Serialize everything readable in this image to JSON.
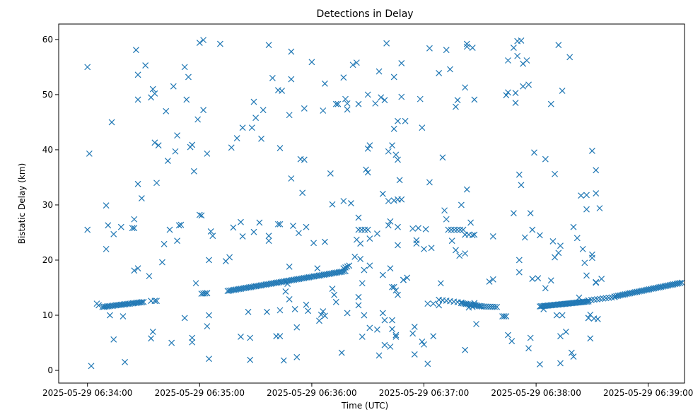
{
  "chart_data": {
    "type": "scatter",
    "title": "Detections in Delay",
    "xlabel": "Time (UTC)",
    "ylabel": "Bistatic Delay (km)",
    "marker": "x",
    "marker_color": "#1f77b4",
    "xlim_seconds": [
      -15.4,
      319.4
    ],
    "ylim": [
      -2.3,
      62.8
    ],
    "x_ticks": [
      {
        "t": 0,
        "label": "2025-05-29 06:34:00"
      },
      {
        "t": 60,
        "label": "2025-05-29 06:35:00"
      },
      {
        "t": 120,
        "label": "2025-05-29 06:36:00"
      },
      {
        "t": 180,
        "label": "2025-05-29 06:37:00"
      },
      {
        "t": 240,
        "label": "2025-05-29 06:38:00"
      },
      {
        "t": 300,
        "label": "2025-05-29 06:39:00"
      }
    ],
    "y_ticks": [
      {
        "v": 0,
        "label": "0"
      },
      {
        "v": 10,
        "label": "10"
      },
      {
        "v": 20,
        "label": "20"
      },
      {
        "v": 30,
        "label": "30"
      },
      {
        "v": 40,
        "label": "40"
      },
      {
        "v": 50,
        "label": "50"
      },
      {
        "v": 60,
        "label": "60"
      }
    ],
    "track_segments": [
      {
        "t0": 8,
        "t1": 30,
        "y0": 11.5,
        "y1": 12.4,
        "n": 28
      },
      {
        "t0": 36,
        "t1": 37,
        "y0": 12.6,
        "y1": 12.6,
        "n": 2
      },
      {
        "t0": 61,
        "t1": 64,
        "y0": 13.9,
        "y1": 14.0,
        "n": 4
      },
      {
        "t0": 75,
        "t1": 138,
        "y0": 14.4,
        "y1": 18.0,
        "n": 72
      },
      {
        "t0": 137,
        "t1": 140,
        "y0": 18.5,
        "y1": 19.0,
        "n": 4
      },
      {
        "t0": 145,
        "t1": 150,
        "y0": 25.5,
        "y1": 25.5,
        "n": 4
      },
      {
        "t0": 166,
        "t1": 168,
        "y0": 31.0,
        "y1": 31.0,
        "n": 2
      },
      {
        "t0": 188,
        "t1": 200,
        "y0": 12.8,
        "y1": 12.3,
        "n": 7
      },
      {
        "t0": 200,
        "t1": 211,
        "y0": 12.2,
        "y1": 11.6,
        "n": 14
      },
      {
        "t0": 211,
        "t1": 219,
        "y0": 11.6,
        "y1": 11.5,
        "n": 8
      },
      {
        "t0": 222,
        "t1": 224,
        "y0": 9.8,
        "y1": 9.8,
        "n": 3
      },
      {
        "t0": 193,
        "t1": 201,
        "y0": 25.5,
        "y1": 25.5,
        "n": 6
      },
      {
        "t0": 242,
        "t1": 268,
        "y0": 11.6,
        "y1": 12.5,
        "n": 36
      },
      {
        "t0": 268,
        "t1": 282,
        "y0": 12.7,
        "y1": 13.3,
        "n": 10
      },
      {
        "t0": 282,
        "t1": 318,
        "y0": 13.4,
        "y1": 15.9,
        "n": 40
      }
    ],
    "points": [
      [
        0,
        55
      ],
      [
        1,
        39.3
      ],
      [
        2,
        0.8
      ],
      [
        5,
        12.1
      ],
      [
        6,
        11.8
      ],
      [
        0,
        25.5
      ],
      [
        10,
        29.9
      ],
      [
        10,
        22
      ],
      [
        11,
        26.3
      ],
      [
        12,
        10
      ],
      [
        13,
        45
      ],
      [
        14,
        24.7
      ],
      [
        14,
        5.6
      ],
      [
        18,
        26
      ],
      [
        19,
        9.8
      ],
      [
        20,
        1.5
      ],
      [
        24,
        25.8
      ],
      [
        25,
        25.8
      ],
      [
        25,
        27.4
      ],
      [
        25,
        18.1
      ],
      [
        26,
        58.1
      ],
      [
        27,
        53.6
      ],
      [
        27,
        49.1
      ],
      [
        27,
        33.8
      ],
      [
        27,
        18.5
      ],
      [
        29,
        31.2
      ],
      [
        31,
        55.3
      ],
      [
        33,
        17.1
      ],
      [
        34,
        5.8
      ],
      [
        34,
        12.6
      ],
      [
        34,
        49.5
      ],
      [
        35,
        51
      ],
      [
        35,
        7
      ],
      [
        36,
        41.3
      ],
      [
        36,
        50.2
      ],
      [
        37,
        34
      ],
      [
        38,
        40.8
      ],
      [
        40,
        19.6
      ],
      [
        41,
        22.9
      ],
      [
        42,
        47
      ],
      [
        43,
        38
      ],
      [
        44,
        25.5
      ],
      [
        45,
        5
      ],
      [
        46,
        51.5
      ],
      [
        47,
        39.7
      ],
      [
        48,
        42.6
      ],
      [
        48,
        23.5
      ],
      [
        49,
        26.3
      ],
      [
        50,
        26.4
      ],
      [
        52,
        9.5
      ],
      [
        52,
        55
      ],
      [
        53,
        49.1
      ],
      [
        54,
        53.2
      ],
      [
        55,
        40.5
      ],
      [
        56,
        5.9
      ],
      [
        56,
        5.1
      ],
      [
        56,
        40.9
      ],
      [
        57,
        36.1
      ],
      [
        58,
        15.8
      ],
      [
        59,
        45.5
      ],
      [
        60,
        28.2
      ],
      [
        60,
        59.4
      ],
      [
        61,
        28.1
      ],
      [
        62,
        47.2
      ],
      [
        62,
        59.9
      ],
      [
        64,
        39.3
      ],
      [
        64,
        8
      ],
      [
        64,
        14
      ],
      [
        65,
        10
      ],
      [
        65,
        2.1
      ],
      [
        65,
        20
      ],
      [
        66,
        25.2
      ],
      [
        67,
        24.4
      ],
      [
        71,
        59.2
      ],
      [
        74,
        19.8
      ],
      [
        76,
        20.5
      ],
      [
        77,
        40.4
      ],
      [
        78,
        25.9
      ],
      [
        80,
        42.1
      ],
      [
        82,
        26.9
      ],
      [
        82,
        6.1
      ],
      [
        83,
        24.3
      ],
      [
        83,
        44
      ],
      [
        86,
        10.6
      ],
      [
        87,
        5.9
      ],
      [
        87,
        1.9
      ],
      [
        88,
        44
      ],
      [
        89,
        25.1
      ],
      [
        89,
        48.7
      ],
      [
        90,
        45.8
      ],
      [
        92,
        26.8
      ],
      [
        93,
        42
      ],
      [
        94,
        47.2
      ],
      [
        96,
        10.6
      ],
      [
        97,
        59
      ],
      [
        97,
        24.4
      ],
      [
        97,
        23.5
      ],
      [
        99,
        53
      ],
      [
        101,
        6.2
      ],
      [
        102,
        50.8
      ],
      [
        102,
        26.5
      ],
      [
        103,
        26.5
      ],
      [
        103,
        6.2
      ],
      [
        103,
        10.9
      ],
      [
        103,
        40.3
      ],
      [
        104,
        50.7
      ],
      [
        105,
        1.8
      ],
      [
        106,
        14.3
      ],
      [
        107,
        15.7
      ],
      [
        108,
        18.8
      ],
      [
        108,
        12.9
      ],
      [
        108,
        46.3
      ],
      [
        109,
        57.8
      ],
      [
        109,
        52.8
      ],
      [
        109,
        34.8
      ],
      [
        110,
        26.2
      ],
      [
        111,
        11.1
      ],
      [
        112,
        7.8
      ],
      [
        112,
        2.4
      ],
      [
        113,
        24.9
      ],
      [
        114,
        38.3
      ],
      [
        115,
        32.2
      ],
      [
        116,
        47.5
      ],
      [
        116,
        38.2
      ],
      [
        117,
        26
      ],
      [
        117,
        11.9
      ],
      [
        118,
        10.8
      ],
      [
        120,
        55.9
      ],
      [
        121,
        23.1
      ],
      [
        123,
        18.5
      ],
      [
        124,
        9
      ],
      [
        125,
        10.1
      ],
      [
        126,
        47.1
      ],
      [
        126,
        10.7
      ],
      [
        127,
        52
      ],
      [
        127,
        9.9
      ],
      [
        127,
        23.3
      ],
      [
        130,
        35.7
      ],
      [
        131,
        14.8
      ],
      [
        131,
        30.1
      ],
      [
        132,
        13.7
      ],
      [
        133,
        48.3
      ],
      [
        133,
        12.4
      ],
      [
        134,
        48.3
      ],
      [
        136,
        3.2
      ],
      [
        137,
        53.1
      ],
      [
        137,
        30.7
      ],
      [
        138,
        49.2
      ],
      [
        139,
        10.4
      ],
      [
        139,
        48.4
      ],
      [
        139,
        47.3
      ],
      [
        141,
        30.3
      ],
      [
        142,
        55.4
      ],
      [
        143,
        20.6
      ],
      [
        144,
        55.8
      ],
      [
        144,
        23.7
      ],
      [
        145,
        13.3
      ],
      [
        145,
        27.7
      ],
      [
        145,
        11.8
      ],
      [
        145,
        48.3
      ],
      [
        146,
        23
      ],
      [
        146,
        20.2
      ],
      [
        147,
        15.8
      ],
      [
        147,
        6.1
      ],
      [
        148,
        10
      ],
      [
        148,
        18.2
      ],
      [
        149,
        36.4
      ],
      [
        150,
        40.2
      ],
      [
        150,
        35.9
      ],
      [
        150,
        50
      ],
      [
        151,
        19
      ],
      [
        151,
        23.9
      ],
      [
        151,
        7.7
      ],
      [
        151,
        40.8
      ],
      [
        154,
        48.4
      ],
      [
        155,
        7.4
      ],
      [
        155,
        24.8
      ],
      [
        156,
        2.7
      ],
      [
        156,
        54.2
      ],
      [
        157,
        49.5
      ],
      [
        158,
        32
      ],
      [
        158,
        17.3
      ],
      [
        158,
        10.4
      ],
      [
        159,
        49
      ],
      [
        159,
        4.6
      ],
      [
        159,
        9.1
      ],
      [
        160,
        59.3
      ],
      [
        161,
        30.7
      ],
      [
        161,
        26.3
      ],
      [
        161,
        39.7
      ],
      [
        162,
        27
      ],
      [
        162,
        4.3
      ],
      [
        162,
        18.5
      ],
      [
        163,
        15.1
      ],
      [
        163,
        9.1
      ],
      [
        163,
        7.5
      ],
      [
        163,
        40.8
      ],
      [
        164,
        30.8
      ],
      [
        164,
        53.2
      ],
      [
        164,
        43.8
      ],
      [
        164,
        15.1
      ],
      [
        165,
        39.1
      ],
      [
        165,
        6.1
      ],
      [
        165,
        14.5
      ],
      [
        165,
        6.4
      ],
      [
        166,
        26
      ],
      [
        166,
        38.2
      ],
      [
        166,
        45.2
      ],
      [
        166,
        13.7
      ],
      [
        166,
        22.7
      ],
      [
        167,
        34.5
      ],
      [
        168,
        49.6
      ],
      [
        168,
        55.7
      ],
      [
        169,
        16.4
      ],
      [
        169,
        16.4
      ],
      [
        170,
        45.2
      ],
      [
        171,
        16.8
      ],
      [
        174,
        25.7
      ],
      [
        174,
        6.7
      ],
      [
        175,
        7.9
      ],
      [
        175,
        2.9
      ],
      [
        176,
        23
      ],
      [
        176,
        23.6
      ],
      [
        177,
        25.8
      ],
      [
        178,
        49.2
      ],
      [
        179,
        44
      ],
      [
        179,
        5.2
      ],
      [
        180,
        4.7
      ],
      [
        180,
        22
      ],
      [
        181,
        25.6
      ],
      [
        182,
        12.1
      ],
      [
        182,
        1.2
      ],
      [
        183,
        58.4
      ],
      [
        183,
        34.1
      ],
      [
        184,
        22.2
      ],
      [
        185,
        6.2
      ],
      [
        185,
        12.1
      ],
      [
        188,
        53.9
      ],
      [
        188,
        11.8
      ],
      [
        189,
        15.8
      ],
      [
        190,
        38.6
      ],
      [
        191,
        29
      ],
      [
        192,
        58.1
      ],
      [
        192,
        27.4
      ],
      [
        194,
        54.6
      ],
      [
        195,
        23.5
      ],
      [
        197,
        47.8
      ],
      [
        197,
        21.8
      ],
      [
        198,
        49
      ],
      [
        199,
        20.8
      ],
      [
        200,
        30
      ],
      [
        202,
        51.3
      ],
      [
        202,
        21.2
      ],
      [
        202,
        3.7
      ],
      [
        202,
        24.6
      ],
      [
        203,
        59.2
      ],
      [
        203,
        58.7
      ],
      [
        203,
        32.8
      ],
      [
        204,
        11.4
      ],
      [
        204,
        24.6
      ],
      [
        205,
        26.8
      ],
      [
        206,
        24.5
      ],
      [
        206,
        11.5
      ],
      [
        206,
        58.5
      ],
      [
        207,
        49.1
      ],
      [
        207,
        24.6
      ],
      [
        207,
        12.2
      ],
      [
        207,
        11.9
      ],
      [
        208,
        8.4
      ],
      [
        215,
        16.1
      ],
      [
        217,
        16.5
      ],
      [
        217,
        24.3
      ],
      [
        224,
        49.9
      ],
      [
        225,
        50.4
      ],
      [
        225,
        6.4
      ],
      [
        225,
        56.2
      ],
      [
        227,
        5.3
      ],
      [
        228,
        58.5
      ],
      [
        228,
        28.5
      ],
      [
        229,
        50.3
      ],
      [
        229,
        48.5
      ],
      [
        230,
        59.7
      ],
      [
        230,
        57
      ],
      [
        231,
        35.5
      ],
      [
        231,
        17.8
      ],
      [
        231,
        20
      ],
      [
        232,
        33.6
      ],
      [
        232,
        59.8
      ],
      [
        233,
        55.6
      ],
      [
        233,
        51.5
      ],
      [
        234,
        24.1
      ],
      [
        235,
        56.2
      ],
      [
        236,
        51.8
      ],
      [
        236,
        4
      ],
      [
        237,
        5.9
      ],
      [
        237,
        28.5
      ],
      [
        238,
        16.6
      ],
      [
        238,
        25.5
      ],
      [
        239,
        39.5
      ],
      [
        241,
        16.7
      ],
      [
        242,
        1.1
      ],
      [
        242,
        24.5
      ],
      [
        244,
        11.1
      ],
      [
        245,
        38.3
      ],
      [
        245,
        14.9
      ],
      [
        248,
        48.3
      ],
      [
        248,
        16.3
      ],
      [
        249,
        23.4
      ],
      [
        250,
        35.6
      ],
      [
        250,
        20.5
      ],
      [
        251,
        10
      ],
      [
        252,
        59
      ],
      [
        252,
        21.3
      ],
      [
        253,
        1.3
      ],
      [
        253,
        6.2
      ],
      [
        253,
        22.6
      ],
      [
        254,
        10
      ],
      [
        254,
        50.7
      ],
      [
        256,
        7
      ],
      [
        258,
        56.8
      ],
      [
        259,
        3.2
      ],
      [
        260,
        26
      ],
      [
        260,
        2.5
      ],
      [
        262,
        24
      ],
      [
        263,
        13.2
      ],
      [
        264,
        31.7
      ],
      [
        265,
        22
      ],
      [
        266,
        19.5
      ],
      [
        267,
        31.8
      ],
      [
        267,
        17.2
      ],
      [
        267,
        29.2
      ],
      [
        268,
        9.5
      ],
      [
        268,
        9.5
      ],
      [
        269,
        5.8
      ],
      [
        269,
        10.1
      ],
      [
        270,
        39.8
      ],
      [
        270,
        21
      ],
      [
        270,
        20.4
      ],
      [
        271,
        9.4
      ],
      [
        272,
        32.1
      ],
      [
        272,
        16
      ],
      [
        272,
        36.3
      ],
      [
        272,
        15.9
      ],
      [
        273,
        9.3
      ],
      [
        274,
        29.4
      ],
      [
        275,
        16.6
      ]
    ]
  }
}
